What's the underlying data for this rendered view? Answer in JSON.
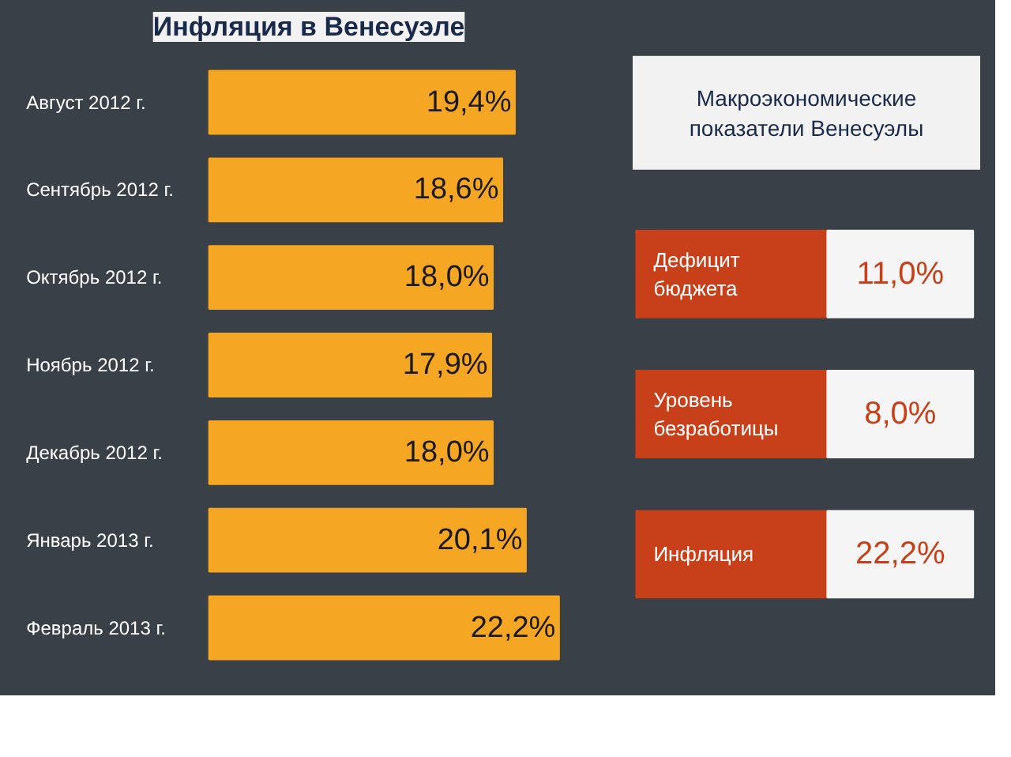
{
  "chart_data": [
    {
      "type": "bar",
      "orientation": "horizontal",
      "title": "Инфляция в Венесуэле",
      "categories": [
        "Август 2012 г.",
        "Сентябрь 2012 г.",
        "Октябрь 2012 г.",
        "Ноябрь 2012 г.",
        "Декабрь 2012 г.",
        "Январь 2013 г.",
        "Февраль 2013 г."
      ],
      "values": [
        19.4,
        18.6,
        18.0,
        17.9,
        18.0,
        20.1,
        22.2
      ],
      "value_labels": [
        "19,4%",
        "18,6%",
        "18,0%",
        "17,9%",
        "18,0%",
        "20,1%",
        "22,2%"
      ],
      "color": "#f5a623",
      "grid": false
    },
    {
      "type": "other",
      "title": "Макроэкономические\nпоказатели Венесуэлы",
      "categories": [
        "Дефицит\nбюджета",
        "Уровень\nбезработицы",
        "Инфляция"
      ],
      "value_labels": [
        "11,0%",
        "8,0%",
        "22,2%"
      ],
      "color": "#c8401a"
    }
  ]
}
